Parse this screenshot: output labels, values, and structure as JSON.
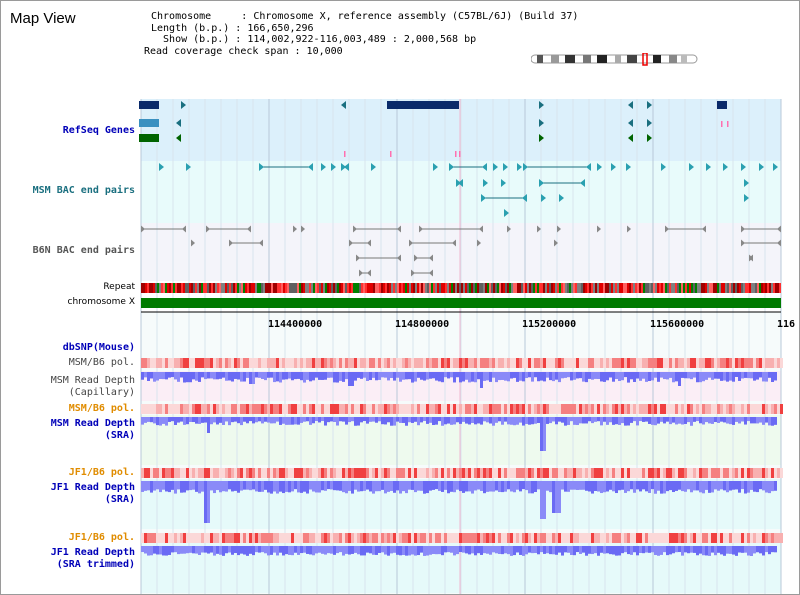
{
  "view_title": "Map View",
  "info": {
    "line1": "Chromosome     : Chromosome X, reference assembly (C57BL/6J) (Build 37)",
    "line2": "Length (b.p.) : 166,650,296",
    "line3": "  Show (b.p.) : 114,002,922-116,003,489 : 2,000,568 bp",
    "line4": "Read coverage check span : 10,000"
  },
  "tracks": {
    "refseq": "RefSeq Genes",
    "msm_bac": "MSM BAC end pairs",
    "b6n_bac": "B6N BAC end pairs",
    "repeat": "Repeat",
    "chromosome": "chromosome X",
    "dbsnp": "dbSNP(Mouse)",
    "msm_b6_pol_1": "MSM/B6 pol.",
    "msm_read_depth_cap_1": "MSM Read Depth",
    "msm_read_depth_cap_2": "(Capillary)",
    "msm_b6_pol_2": "MSM/B6 pol.",
    "msm_read_depth_sra_1": "MSM Read Depth",
    "msm_read_depth_sra_2": "(SRA)",
    "jf1_b6_pol_1": "JF1/B6 pol.",
    "jf1_read_depth_sra_1": "JF1 Read Depth",
    "jf1_read_depth_sra_2": "(SRA)",
    "jf1_b6_pol_2": "JF1/B6 pol.",
    "jf1_read_depth_trim_1": "JF1 Read Depth",
    "jf1_read_depth_trim_2": "(SRA trimmed)"
  },
  "axis": {
    "ticks": [
      "114400000",
      "114800000",
      "115200000",
      "115600000",
      "116"
    ]
  },
  "colors": {
    "refseq_bg": "#dcf0fb",
    "bac_bg": "#e8fbfb",
    "b6n_bg": "#f4f4fa",
    "read_bg_pink": "#fbeef6",
    "read_bg_green": "#eefaee",
    "read_bg_cyan": "#e6fafa",
    "depth_blue": "#3a3af0",
    "depth_light": "#8a8af8",
    "chrom_green": "#007a00"
  }
}
